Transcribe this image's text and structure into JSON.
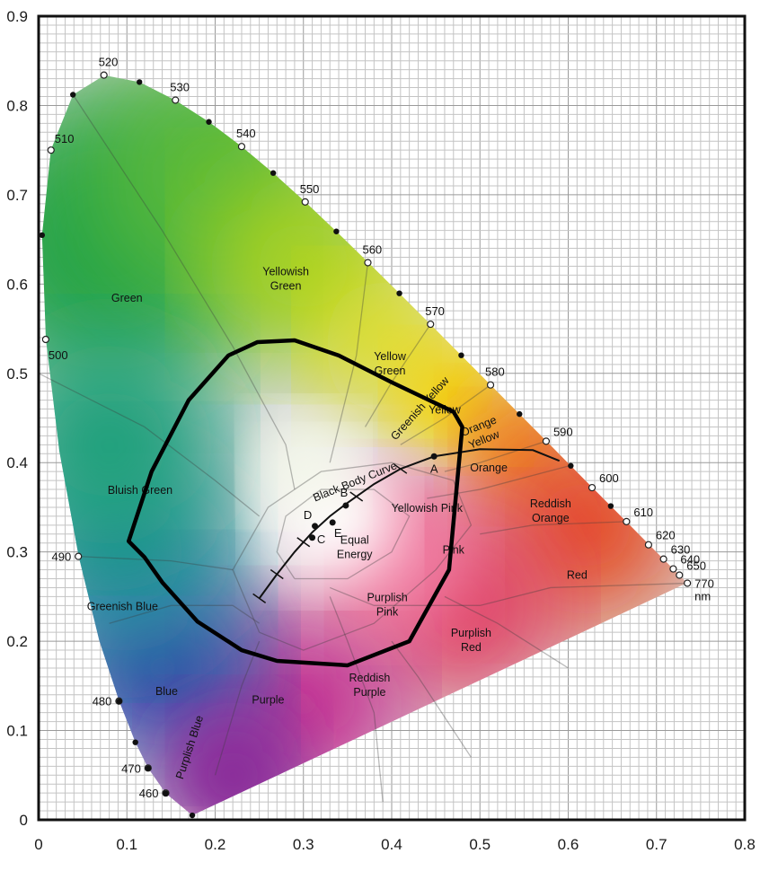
{
  "chart_data": {
    "type": "scatter",
    "xlim": [
      0,
      0.8
    ],
    "ylim": [
      0,
      0.9
    ],
    "x_ticks": [
      "0",
      "0.1",
      "0.2",
      "0.3",
      "0.4",
      "0.5",
      "0.6",
      "0.7",
      "0.8"
    ],
    "y_ticks": [
      "0",
      "0.1",
      "0.2",
      "0.3",
      "0.4",
      "0.5",
      "0.6",
      "0.7",
      "0.8",
      "0.9"
    ],
    "grid": true,
    "spectral_locus_labels": [
      {
        "label": "460",
        "x": 0.144,
        "y": 0.03
      },
      {
        "label": "470",
        "x": 0.124,
        "y": 0.058
      },
      {
        "label": "480",
        "x": 0.091,
        "y": 0.133
      },
      {
        "label": "490",
        "x": 0.045,
        "y": 0.295
      },
      {
        "label": "500",
        "x": 0.008,
        "y": 0.538
      },
      {
        "label": "510",
        "x": 0.014,
        "y": 0.75
      },
      {
        "label": "520",
        "x": 0.074,
        "y": 0.834
      },
      {
        "label": "530",
        "x": 0.155,
        "y": 0.806
      },
      {
        "label": "540",
        "x": 0.23,
        "y": 0.754
      },
      {
        "label": "550",
        "x": 0.302,
        "y": 0.692
      },
      {
        "label": "560",
        "x": 0.373,
        "y": 0.624
      },
      {
        "label": "570",
        "x": 0.444,
        "y": 0.555
      },
      {
        "label": "580",
        "x": 0.512,
        "y": 0.487
      },
      {
        "label": "590",
        "x": 0.575,
        "y": 0.424
      },
      {
        "label": "600",
        "x": 0.627,
        "y": 0.372
      },
      {
        "label": "610",
        "x": 0.666,
        "y": 0.334
      },
      {
        "label": "620",
        "x": 0.691,
        "y": 0.308
      },
      {
        "label": "630",
        "x": 0.708,
        "y": 0.292
      },
      {
        "label": "640",
        "x": 0.719,
        "y": 0.281
      },
      {
        "label": "650",
        "x": 0.726,
        "y": 0.274
      },
      {
        "label": "770",
        "x": 0.735,
        "y": 0.265
      }
    ],
    "unit_label": "nm",
    "illuminants": [
      {
        "label": "A",
        "x": 0.448,
        "y": 0.407
      },
      {
        "label": "B",
        "x": 0.348,
        "y": 0.352
      },
      {
        "label": "C",
        "x": 0.31,
        "y": 0.316
      },
      {
        "label": "D",
        "x": 0.313,
        "y": 0.329
      },
      {
        "label": "E",
        "x": 0.333,
        "y": 0.333
      }
    ],
    "black_body_curve": {
      "label": "Black Body Curve",
      "x": [
        0.25,
        0.27,
        0.29,
        0.31,
        0.33,
        0.35,
        0.38,
        0.41,
        0.448,
        0.5,
        0.56,
        0.59
      ],
      "y": [
        0.248,
        0.275,
        0.3,
        0.322,
        0.34,
        0.355,
        0.376,
        0.393,
        0.407,
        0.415,
        0.414,
        0.402
      ]
    },
    "gamut_outline": {
      "x": [
        0.102,
        0.128,
        0.17,
        0.215,
        0.248,
        0.29,
        0.34,
        0.4,
        0.47,
        0.48,
        0.465,
        0.42,
        0.35,
        0.27,
        0.23,
        0.18,
        0.14,
        0.12
      ],
      "y": [
        0.312,
        0.39,
        0.47,
        0.52,
        0.535,
        0.537,
        0.52,
        0.49,
        0.457,
        0.44,
        0.28,
        0.2,
        0.173,
        0.178,
        0.19,
        0.222,
        0.266,
        0.294
      ]
    },
    "regions": [
      {
        "label": "Green",
        "x": 0.1,
        "y": 0.58
      },
      {
        "label": "Yellowish\nGreen",
        "x": 0.28,
        "y": 0.61
      },
      {
        "label": "Yellow\nGreen",
        "x": 0.398,
        "y": 0.515
      },
      {
        "label": "Greenish Yellow",
        "x": 0.435,
        "y": 0.458
      },
      {
        "label": "Yellow",
        "x": 0.46,
        "y": 0.455
      },
      {
        "label": "Orange\nYellow",
        "x": 0.5,
        "y": 0.437
      },
      {
        "label": "Orange",
        "x": 0.51,
        "y": 0.39
      },
      {
        "label": "Bluish Green",
        "x": 0.115,
        "y": 0.365
      },
      {
        "label": "Yellowish Pink",
        "x": 0.44,
        "y": 0.345
      },
      {
        "label": "Reddish\nOrange",
        "x": 0.58,
        "y": 0.35
      },
      {
        "label": "Equal\nEnergy",
        "x": 0.358,
        "y": 0.309
      },
      {
        "label": "Pink",
        "x": 0.47,
        "y": 0.298
      },
      {
        "label": "Red",
        "x": 0.61,
        "y": 0.27
      },
      {
        "label": "Purplish\nPink",
        "x": 0.395,
        "y": 0.245
      },
      {
        "label": "Greenish Blue",
        "x": 0.095,
        "y": 0.235
      },
      {
        "label": "Purplish\nRed",
        "x": 0.49,
        "y": 0.205
      },
      {
        "label": "Reddish\nPurple",
        "x": 0.375,
        "y": 0.155
      },
      {
        "label": "Blue",
        "x": 0.145,
        "y": 0.14
      },
      {
        "label": "Purple",
        "x": 0.26,
        "y": 0.13
      },
      {
        "label": "Purplish Blue",
        "x": 0.175,
        "y": 0.08
      }
    ]
  }
}
